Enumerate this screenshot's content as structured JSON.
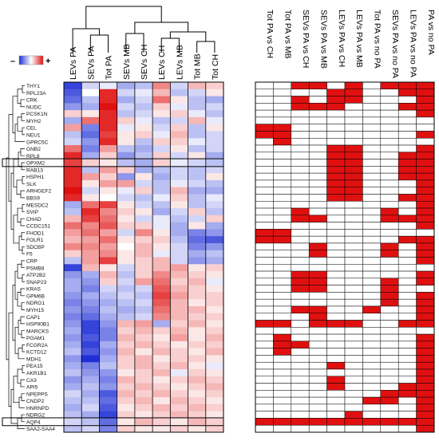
{
  "legend": {
    "min_label": "–",
    "max_label": "+",
    "low_color": "#1f2fd6",
    "mid_color": "#ffffff",
    "high_color": "#e01010"
  },
  "chart_data": [
    {
      "type": "heatmap",
      "columns": [
        "LEVs PA",
        "SEVs PA",
        "Tot PA",
        "SEVs MB",
        "SEVs CH",
        "LEVs CH",
        "LEVs MB",
        "Tot MB",
        "Tot CH"
      ],
      "rows": [
        "THY1",
        "RPL23A",
        "CRK",
        "NUDC",
        "PCSK1N",
        "MYH2",
        "CEL",
        "NEU1",
        "GPRC5C",
        "GNB2",
        "RPL8",
        "OPXM2",
        "RAB13",
        "HSPH1",
        "SLK",
        "ARHGEF2",
        "BBS9",
        "MESDC2",
        "SVIP",
        "CHAD",
        "CCDC151",
        "FHOD1",
        "FOLR1",
        "SDCBP",
        "F5",
        "CRP",
        "PSMB8",
        "ATP2B2",
        "SNAP23",
        "KRAS",
        "GPM6B",
        "NDRG1",
        "MYH15",
        "CAP1",
        "HSP90B1",
        "MARCKS",
        "PGAM1",
        "FCGR2A",
        "KCTD12",
        "MDH1",
        "PEA15",
        "AKR1B1",
        "CA3",
        "API5",
        "NPEPPS",
        "CNDP2",
        "HNRNPD",
        "NDRG2",
        "AQP4",
        "SAA2-SAA4"
      ],
      "color_scale": {
        "min": -1,
        "max": 1,
        "low": "#1f2fd6",
        "mid": "#ffffff",
        "high": "#e01010"
      },
      "values": [
        [
          -0.9,
          -0.2,
          -0.1,
          -0.4,
          -0.3,
          0.5,
          -0.2,
          0.3,
          0.2
        ],
        [
          -0.8,
          0.0,
          0.9,
          -0.2,
          -0.1,
          0.3,
          -0.3,
          -0.2,
          0.1
        ],
        [
          -0.7,
          -0.3,
          0.9,
          -0.4,
          -0.2,
          0.6,
          0.1,
          -0.3,
          -0.4
        ],
        [
          -0.5,
          -0.4,
          1.0,
          -0.2,
          -0.3,
          0.2,
          -0.1,
          -0.3,
          -0.2
        ],
        [
          0.2,
          0.1,
          0.9,
          -0.3,
          -0.2,
          0.1,
          0.2,
          -0.1,
          -0.3
        ],
        [
          -0.4,
          0.6,
          0.9,
          0.2,
          -0.1,
          -0.3,
          -0.2,
          0.3,
          -0.1
        ],
        [
          0.4,
          -0.6,
          0.9,
          -0.1,
          0.1,
          -0.2,
          0.2,
          -0.3,
          0.1
        ],
        [
          -0.3,
          -0.7,
          0.8,
          0.1,
          0.2,
          -0.1,
          0.3,
          -0.3,
          -0.2
        ],
        [
          -0.2,
          -0.5,
          0.9,
          0.1,
          -0.3,
          0.2,
          0.2,
          -0.1,
          -0.2
        ],
        [
          0.6,
          -0.6,
          0.4,
          -0.3,
          -0.4,
          -0.2,
          0.1,
          -0.3,
          -0.2
        ],
        [
          0.9,
          -0.4,
          0.2,
          -0.5,
          -0.3,
          0.2,
          -0.2,
          0.1,
          -0.4
        ],
        [
          0.8,
          0.2,
          0.1,
          -0.3,
          -0.4,
          0.2,
          -0.1,
          -0.2,
          -0.3
        ],
        [
          0.9,
          -0.3,
          0.4,
          0.2,
          -0.4,
          -0.3,
          -0.2,
          -0.3,
          -0.2
        ],
        [
          0.9,
          0.4,
          0.2,
          -0.5,
          0.1,
          -0.4,
          -0.2,
          -0.3,
          0.1
        ],
        [
          0.9,
          0.1,
          0.4,
          0.4,
          -0.2,
          -0.3,
          -0.1,
          -0.2,
          -0.3
        ],
        [
          1.0,
          -0.2,
          0.1,
          -0.1,
          0.2,
          -0.3,
          0.3,
          -0.4,
          -0.4
        ],
        [
          0.9,
          0.1,
          0.0,
          -0.2,
          -0.3,
          -0.1,
          0.2,
          -0.3,
          -0.1
        ],
        [
          -0.4,
          0.6,
          0.8,
          0.1,
          -0.2,
          -0.3,
          0.1,
          -0.3,
          -0.2
        ],
        [
          -0.3,
          0.9,
          0.5,
          0.2,
          0.1,
          -0.4,
          -0.2,
          0.2,
          -0.3
        ],
        [
          0.3,
          0.8,
          0.6,
          0.1,
          -0.2,
          -0.1,
          -0.3,
          -0.2,
          0.2
        ],
        [
          0.6,
          0.5,
          0.7,
          0.2,
          0.2,
          -0.1,
          -0.4,
          0.1,
          -0.4
        ],
        [
          0.4,
          0.6,
          0.4,
          -0.2,
          0.5,
          0.1,
          -0.4,
          -0.6,
          -0.5
        ],
        [
          0.3,
          0.4,
          0.6,
          0.1,
          0.2,
          0.2,
          -0.3,
          -0.7,
          -0.8
        ],
        [
          0.5,
          0.5,
          0.4,
          0.0,
          0.3,
          0.1,
          -0.2,
          -0.6,
          -0.5
        ],
        [
          0.2,
          0.4,
          0.5,
          0.1,
          0.3,
          -0.1,
          -0.2,
          -0.4,
          -0.3
        ],
        [
          -0.3,
          0.4,
          0.8,
          0.1,
          0.2,
          0.3,
          -0.2,
          -0.5,
          -0.4
        ],
        [
          -0.9,
          0.3,
          0.1,
          -0.2,
          0.2,
          0.3,
          0.4,
          0.1,
          0.2
        ],
        [
          -0.5,
          -0.4,
          0.3,
          -0.3,
          0.2,
          0.5,
          0.3,
          0.2,
          0.1
        ],
        [
          -0.4,
          -0.5,
          0.2,
          -0.2,
          0.4,
          0.6,
          0.2,
          0.3,
          -0.1
        ],
        [
          -0.4,
          -0.6,
          -0.2,
          -0.3,
          -0.2,
          0.7,
          0.3,
          0.2,
          0.1
        ],
        [
          -0.5,
          -0.4,
          -0.3,
          -0.2,
          -0.3,
          0.8,
          0.4,
          0.2,
          0.2
        ],
        [
          -0.6,
          -0.5,
          -0.4,
          -0.3,
          -0.2,
          0.7,
          0.3,
          0.1,
          0.2
        ],
        [
          -0.5,
          -0.6,
          -0.3,
          -0.4,
          -0.3,
          0.6,
          0.3,
          0.3,
          0.1
        ],
        [
          -0.6,
          -0.7,
          -0.4,
          -0.3,
          -0.2,
          0.5,
          0.3,
          0.2,
          0.2
        ],
        [
          -0.5,
          -0.9,
          -0.5,
          0.3,
          0.4,
          -0.4,
          0.2,
          0.3,
          0.1
        ],
        [
          -0.4,
          -0.9,
          -0.6,
          0.2,
          0.3,
          0.2,
          0.3,
          0.1,
          0.2
        ],
        [
          -0.5,
          -0.8,
          -0.6,
          0.3,
          0.2,
          0.1,
          0.4,
          0.1,
          0.3
        ],
        [
          -0.4,
          -0.9,
          -0.4,
          0.2,
          0.3,
          0.2,
          0.1,
          0.2,
          0.2
        ],
        [
          -0.3,
          -0.8,
          -0.5,
          0.3,
          0.1,
          0.3,
          0.2,
          0.1,
          0.3
        ],
        [
          -0.5,
          -1.0,
          -0.4,
          0.2,
          0.3,
          0.1,
          0.2,
          0.2,
          0.1
        ],
        [
          -0.4,
          -0.6,
          -0.3,
          0.2,
          0.3,
          0.2,
          0.3,
          0.1,
          -0.1
        ],
        [
          -0.3,
          -0.5,
          -0.5,
          0.1,
          0.2,
          0.3,
          -0.1,
          0.2,
          0.1
        ],
        [
          -0.5,
          -0.4,
          -0.6,
          0.3,
          0.2,
          0.1,
          0.2,
          0.3,
          0.2
        ],
        [
          -0.4,
          -0.3,
          -0.5,
          0.2,
          0.3,
          0.2,
          0.1,
          0.2,
          0.3
        ],
        [
          -0.2,
          -0.4,
          -0.8,
          0.3,
          0.2,
          0.3,
          0.2,
          0.1,
          0.2
        ],
        [
          -0.3,
          -0.3,
          -0.7,
          0.2,
          0.3,
          0.1,
          0.3,
          0.2,
          0.1
        ],
        [
          -0.4,
          -0.2,
          -0.8,
          0.1,
          0.2,
          0.3,
          0.2,
          0.3,
          0.2
        ],
        [
          -0.3,
          -0.4,
          -0.9,
          0.2,
          0.1,
          0.2,
          0.3,
          0.2,
          0.1
        ],
        [
          -0.2,
          -0.3,
          -0.7,
          0.1,
          0.3,
          0.2,
          0.1,
          0.3,
          0.2
        ],
        [
          -0.3,
          -0.2,
          -0.6,
          0.2,
          0.1,
          0.1,
          0.2,
          0.1,
          0.2
        ]
      ]
    },
    {
      "type": "heatmap",
      "columns": [
        "Tot PA vs CH",
        "Tot PA vs MB",
        "SEVs PA vs CH",
        "SEVs PA vs MB",
        "LEVs PA vs CH",
        "LEVs PA vs MB",
        "Tot PA vs no PA",
        "SEVs PA vs no PA",
        "LEVs PA vs no PA",
        "PA vs no PA"
      ],
      "rows_same_as_previous": true,
      "fill_color": "#e01010",
      "empty_color": "#ffffff",
      "values": [
        [
          0,
          0,
          1,
          1,
          0,
          1,
          0,
          1,
          1,
          1
        ],
        [
          0,
          0,
          0,
          0,
          1,
          1,
          0,
          0,
          1,
          1
        ],
        [
          0,
          0,
          1,
          0,
          1,
          1,
          0,
          0,
          0,
          1
        ],
        [
          0,
          0,
          1,
          1,
          1,
          0,
          0,
          0,
          1,
          1
        ],
        [
          0,
          0,
          0,
          0,
          0,
          0,
          0,
          0,
          0,
          1
        ],
        [
          0,
          0,
          0,
          0,
          0,
          0,
          0,
          0,
          0,
          0
        ],
        [
          1,
          1,
          0,
          0,
          0,
          0,
          0,
          0,
          0,
          0
        ],
        [
          1,
          1,
          0,
          0,
          0,
          0,
          0,
          0,
          0,
          1
        ],
        [
          0,
          1,
          0,
          0,
          0,
          0,
          0,
          0,
          0,
          0
        ],
        [
          0,
          0,
          0,
          0,
          1,
          1,
          0,
          0,
          0,
          1
        ],
        [
          0,
          0,
          0,
          0,
          1,
          1,
          0,
          0,
          1,
          1
        ],
        [
          0,
          0,
          0,
          0,
          1,
          1,
          0,
          0,
          1,
          1
        ],
        [
          0,
          0,
          0,
          0,
          1,
          1,
          0,
          0,
          1,
          1
        ],
        [
          0,
          0,
          0,
          0,
          1,
          1,
          0,
          0,
          1,
          1
        ],
        [
          0,
          0,
          0,
          0,
          1,
          1,
          0,
          0,
          0,
          1
        ],
        [
          0,
          0,
          0,
          0,
          1,
          1,
          0,
          0,
          0,
          1
        ],
        [
          0,
          0,
          0,
          0,
          1,
          1,
          0,
          0,
          1,
          1
        ],
        [
          0,
          0,
          0,
          0,
          0,
          0,
          0,
          0,
          0,
          1
        ],
        [
          0,
          0,
          1,
          0,
          0,
          0,
          0,
          1,
          0,
          1
        ],
        [
          0,
          0,
          1,
          1,
          0,
          0,
          0,
          1,
          1,
          1
        ],
        [
          0,
          0,
          0,
          0,
          0,
          0,
          0,
          0,
          0,
          1
        ],
        [
          1,
          1,
          0,
          0,
          0,
          0,
          0,
          0,
          0,
          0
        ],
        [
          1,
          1,
          0,
          0,
          0,
          0,
          0,
          0,
          1,
          1
        ],
        [
          0,
          0,
          0,
          1,
          0,
          0,
          0,
          1,
          0,
          1
        ],
        [
          0,
          0,
          0,
          1,
          0,
          0,
          0,
          1,
          0,
          1
        ],
        [
          0,
          0,
          0,
          0,
          0,
          0,
          0,
          0,
          0,
          1
        ],
        [
          0,
          0,
          0,
          0,
          0,
          0,
          0,
          0,
          0,
          0
        ],
        [
          0,
          0,
          1,
          1,
          0,
          0,
          0,
          0,
          0,
          1
        ],
        [
          0,
          0,
          1,
          1,
          0,
          0,
          0,
          1,
          0,
          1
        ],
        [
          0,
          0,
          1,
          1,
          0,
          0,
          0,
          1,
          0,
          0
        ],
        [
          0,
          0,
          0,
          0,
          0,
          0,
          0,
          1,
          0,
          1
        ],
        [
          0,
          0,
          0,
          0,
          0,
          0,
          0,
          1,
          0,
          1
        ],
        [
          0,
          0,
          1,
          1,
          0,
          0,
          1,
          0,
          0,
          1
        ],
        [
          0,
          0,
          0,
          1,
          0,
          0,
          0,
          0,
          0,
          1
        ],
        [
          1,
          1,
          0,
          1,
          1,
          1,
          0,
          0,
          1,
          1
        ],
        [
          0,
          0,
          0,
          0,
          0,
          0,
          0,
          0,
          0,
          0
        ],
        [
          0,
          1,
          0,
          0,
          0,
          0,
          0,
          0,
          0,
          1
        ],
        [
          0,
          1,
          1,
          0,
          0,
          0,
          0,
          0,
          0,
          1
        ],
        [
          0,
          1,
          0,
          0,
          0,
          0,
          0,
          0,
          0,
          1
        ],
        [
          0,
          0,
          0,
          0,
          0,
          0,
          0,
          0,
          0,
          1
        ],
        [
          0,
          0,
          0,
          0,
          1,
          0,
          0,
          0,
          0,
          1
        ],
        [
          0,
          0,
          0,
          0,
          0,
          0,
          0,
          0,
          0,
          1
        ],
        [
          0,
          0,
          0,
          0,
          1,
          0,
          0,
          0,
          0,
          1
        ],
        [
          0,
          0,
          0,
          0,
          1,
          0,
          0,
          0,
          1,
          1
        ],
        [
          0,
          0,
          0,
          0,
          0,
          0,
          0,
          1,
          1,
          1
        ],
        [
          0,
          0,
          0,
          0,
          0,
          0,
          1,
          1,
          0,
          1
        ],
        [
          0,
          0,
          0,
          0,
          0,
          0,
          0,
          0,
          0,
          1
        ],
        [
          0,
          0,
          0,
          0,
          0,
          1,
          0,
          0,
          0,
          1
        ],
        [
          1,
          1,
          1,
          1,
          1,
          1,
          1,
          1,
          1,
          1
        ],
        [
          0,
          0,
          0,
          0,
          0,
          0,
          0,
          0,
          0,
          1
        ]
      ]
    }
  ]
}
